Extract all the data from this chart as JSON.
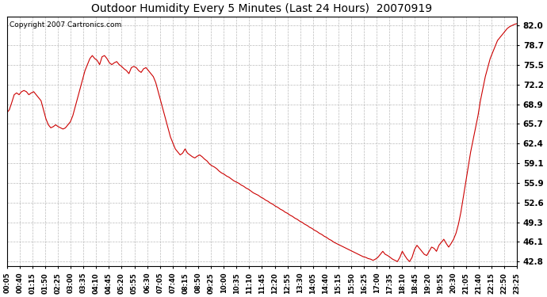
{
  "title": "Outdoor Humidity Every 5 Minutes (Last 24 Hours)  20070919",
  "copyright": "Copyright 2007 Cartronics.com",
  "line_color": "#cc0000",
  "background_color": "#ffffff",
  "grid_color": "#aaaaaa",
  "yticks": [
    42.8,
    46.1,
    49.3,
    52.6,
    55.9,
    59.1,
    62.4,
    65.7,
    68.9,
    72.2,
    75.5,
    78.7,
    82.0
  ],
  "ylim": [
    42.0,
    83.5
  ],
  "xtick_labels": [
    "00:05",
    "00:40",
    "01:15",
    "01:50",
    "02:25",
    "03:00",
    "03:35",
    "04:10",
    "04:45",
    "05:20",
    "05:55",
    "06:30",
    "07:05",
    "07:40",
    "08:15",
    "08:50",
    "09:25",
    "10:00",
    "10:35",
    "11:10",
    "11:45",
    "12:20",
    "12:55",
    "13:30",
    "14:05",
    "14:40",
    "15:15",
    "15:50",
    "16:25",
    "17:00",
    "17:35",
    "18:10",
    "18:45",
    "19:20",
    "19:55",
    "20:30",
    "21:05",
    "21:40",
    "22:15",
    "22:50",
    "23:25"
  ],
  "humidity_values": [
    67.5,
    68.0,
    69.2,
    70.5,
    70.8,
    70.5,
    71.0,
    71.2,
    71.0,
    70.5,
    70.8,
    71.0,
    70.5,
    70.0,
    69.5,
    68.0,
    66.5,
    65.5,
    65.0,
    65.2,
    65.5,
    65.2,
    65.0,
    64.8,
    65.0,
    65.5,
    66.0,
    67.0,
    68.5,
    70.0,
    71.5,
    73.0,
    74.5,
    75.5,
    76.5,
    77.0,
    76.5,
    76.2,
    75.5,
    76.8,
    77.0,
    76.5,
    75.8,
    75.5,
    75.8,
    76.0,
    75.5,
    75.2,
    74.8,
    74.5,
    74.0,
    75.0,
    75.2,
    75.0,
    74.5,
    74.2,
    74.8,
    75.0,
    74.5,
    74.0,
    73.5,
    72.5,
    71.0,
    69.5,
    68.0,
    66.5,
    65.0,
    63.5,
    62.5,
    61.5,
    61.0,
    60.5,
    60.8,
    61.5,
    60.8,
    60.5,
    60.2,
    60.0,
    60.3,
    60.5,
    60.2,
    59.8,
    59.5,
    59.0,
    58.7,
    58.5,
    58.2,
    57.8,
    57.5,
    57.3,
    57.0,
    56.8,
    56.5,
    56.2,
    56.0,
    55.8,
    55.5,
    55.3,
    55.0,
    54.8,
    54.5,
    54.2,
    54.0,
    53.8,
    53.5,
    53.3,
    53.0,
    52.8,
    52.5,
    52.3,
    52.0,
    51.8,
    51.5,
    51.3,
    51.0,
    50.8,
    50.5,
    50.3,
    50.0,
    49.8,
    49.5,
    49.3,
    49.0,
    48.8,
    48.5,
    48.3,
    48.0,
    47.8,
    47.5,
    47.3,
    47.0,
    46.8,
    46.5,
    46.3,
    46.0,
    45.8,
    45.6,
    45.4,
    45.2,
    45.0,
    44.8,
    44.6,
    44.4,
    44.2,
    44.0,
    43.8,
    43.6,
    43.5,
    43.3,
    43.2,
    43.0,
    43.2,
    43.5,
    44.0,
    44.5,
    44.0,
    43.8,
    43.5,
    43.2,
    43.0,
    42.8,
    43.5,
    44.5,
    43.8,
    43.2,
    42.8,
    43.5,
    44.8,
    45.5,
    45.0,
    44.5,
    44.0,
    43.8,
    44.5,
    45.2,
    45.0,
    44.5,
    45.5,
    46.0,
    46.5,
    45.8,
    45.2,
    45.8,
    46.5,
    47.5,
    49.0,
    51.0,
    53.5,
    56.0,
    58.5,
    61.0,
    63.0,
    65.0,
    67.0,
    69.5,
    71.5,
    73.5,
    75.0,
    76.5,
    77.5,
    78.5,
    79.5,
    80.0,
    80.5,
    81.0,
    81.5,
    81.8,
    82.0,
    82.2,
    82.3
  ]
}
